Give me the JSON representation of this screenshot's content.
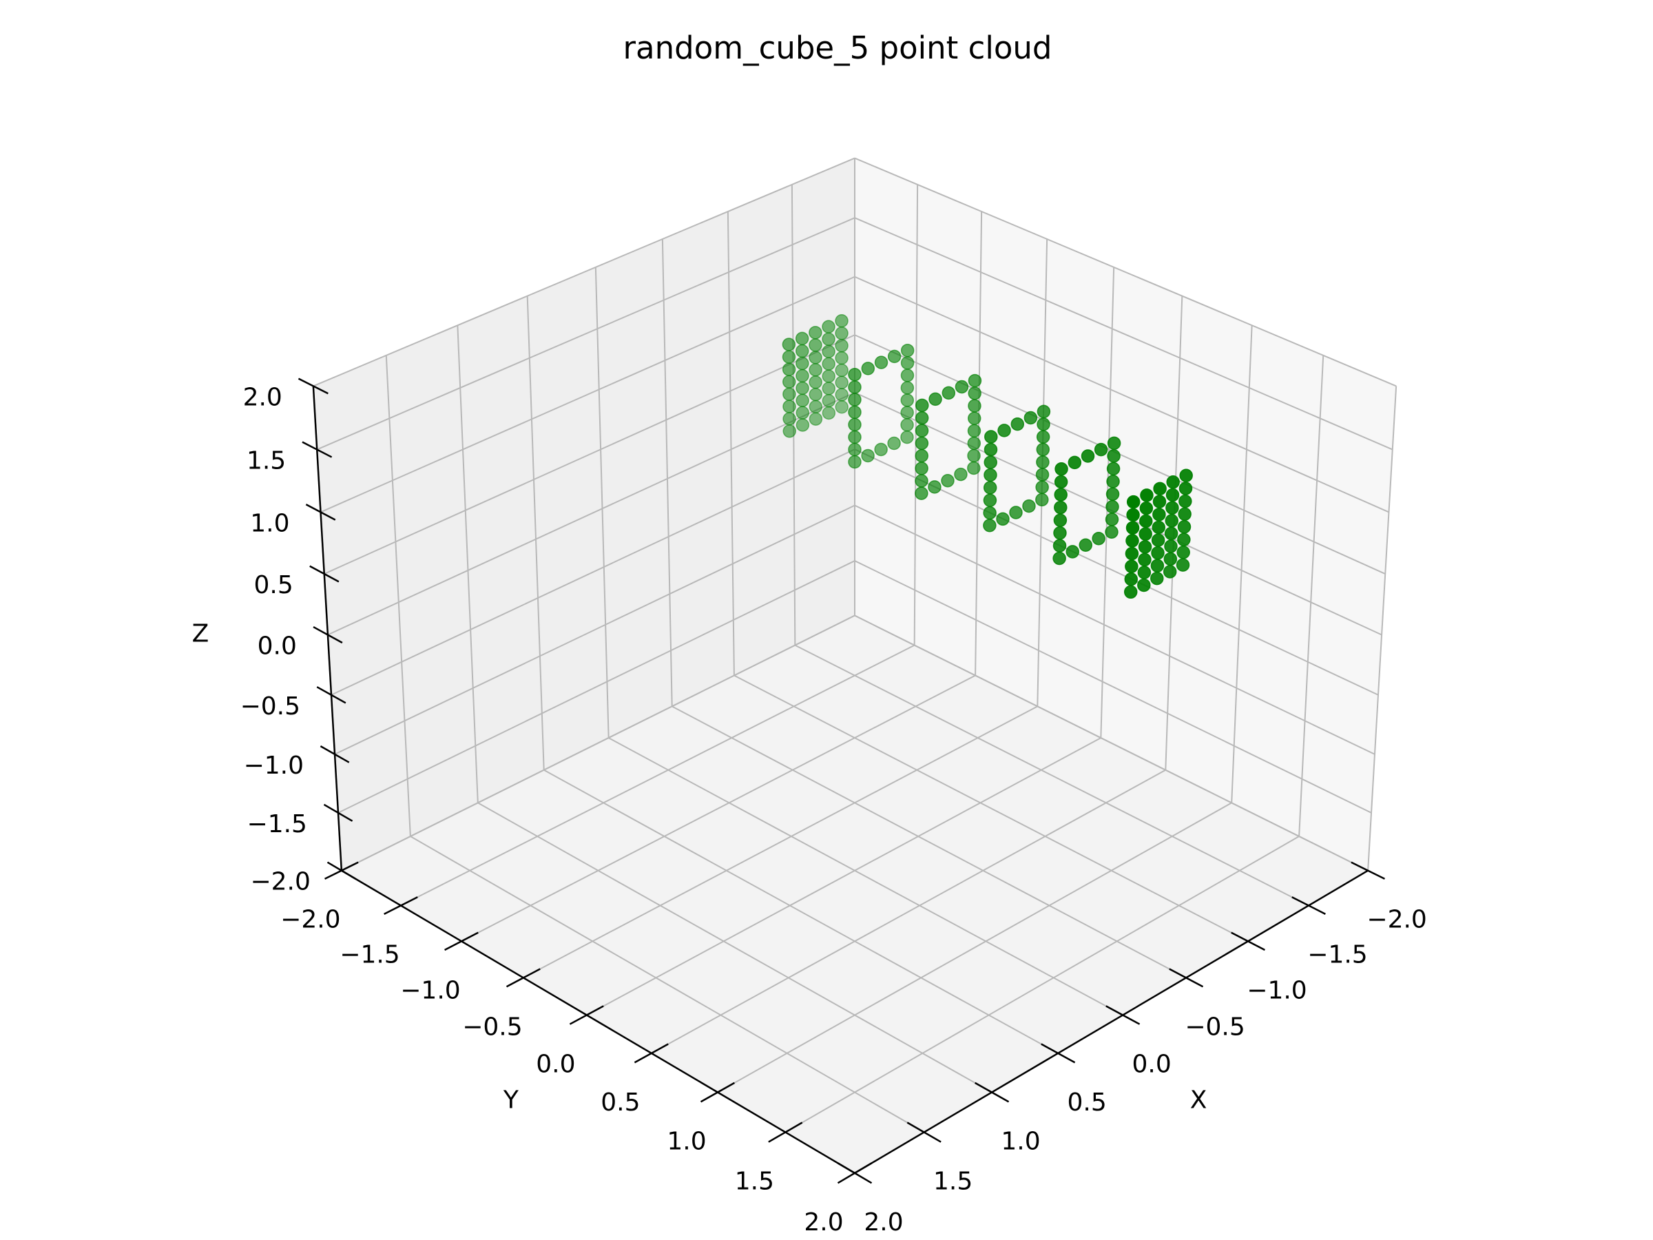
{
  "chart_data": {
    "type": "scatter3d",
    "title": "random_cube_5 point cloud",
    "xlabel": "X",
    "ylabel": "Y",
    "zlabel": "Z",
    "color": "green",
    "grid": true,
    "xlim": [
      -2,
      2
    ],
    "ylim": [
      -2,
      2
    ],
    "zlim": [
      -2,
      2
    ],
    "xticks": [
      {
        "value": -2,
        "label": "−2.0"
      },
      {
        "value": -1.5,
        "label": "−1.5"
      },
      {
        "value": -1,
        "label": "−1.0"
      },
      {
        "value": -0.5,
        "label": "−0.5"
      },
      {
        "value": 0,
        "label": "0.0"
      },
      {
        "value": 0.5,
        "label": "0.5"
      },
      {
        "value": 1,
        "label": "1.0"
      },
      {
        "value": 1.5,
        "label": "1.5"
      },
      {
        "value": 2,
        "label": "2.0"
      }
    ],
    "yticks": [
      {
        "value": -2,
        "label": "−2.0"
      },
      {
        "value": -1.5,
        "label": "−1.5"
      },
      {
        "value": -1,
        "label": "−1.0"
      },
      {
        "value": -0.5,
        "label": "−0.5"
      },
      {
        "value": 0,
        "label": "0.0"
      },
      {
        "value": 0.5,
        "label": "0.5"
      },
      {
        "value": 1,
        "label": "1.0"
      },
      {
        "value": 1.5,
        "label": "1.5"
      },
      {
        "value": 2,
        "label": "2.0"
      }
    ],
    "zticks": [
      {
        "value": -2,
        "label": "−2.0"
      },
      {
        "value": -1.5,
        "label": "−1.5"
      },
      {
        "value": -1,
        "label": "−1.0"
      },
      {
        "value": -0.5,
        "label": "−0.5"
      },
      {
        "value": 0,
        "label": "0.0"
      },
      {
        "value": 0.5,
        "label": "0.5"
      },
      {
        "value": 1,
        "label": "1.0"
      },
      {
        "value": 1.5,
        "label": "1.5"
      },
      {
        "value": 2,
        "label": "2.0"
      }
    ],
    "x": [
      -0.7,
      -0.7,
      -0.7,
      -0.7,
      -0.7,
      -0.7,
      -0.7,
      -0.7,
      -0.6,
      -0.6,
      -0.6,
      -0.6,
      -0.6,
      -0.6,
      -0.6,
      -0.6,
      -0.5,
      -0.5,
      -0.5,
      -0.5,
      -0.5,
      -0.5,
      -0.5,
      -0.5,
      -0.4,
      -0.4,
      -0.4,
      -0.4,
      -0.4,
      -0.4,
      -0.4,
      -0.4,
      -0.3,
      -0.3,
      -0.3,
      -0.3,
      -0.3,
      -0.3,
      -0.3,
      -0.3,
      -0.7,
      -0.7,
      -0.7,
      -0.7,
      -0.7,
      -0.7,
      -0.7,
      -0.7,
      -0.6,
      -0.6,
      -0.5,
      -0.5,
      -0.4,
      -0.4,
      -0.3,
      -0.3,
      -0.3,
      -0.3,
      -0.3,
      -0.3,
      -0.3,
      -0.3,
      -0.7,
      -0.7,
      -0.7,
      -0.7,
      -0.7,
      -0.7,
      -0.7,
      -0.7,
      -0.6,
      -0.6,
      -0.5,
      -0.5,
      -0.4,
      -0.4,
      -0.3,
      -0.3,
      -0.3,
      -0.3,
      -0.3,
      -0.3,
      -0.3,
      -0.3,
      -0.7,
      -0.7,
      -0.7,
      -0.7,
      -0.7,
      -0.7,
      -0.7,
      -0.7,
      -0.6,
      -0.6,
      -0.5,
      -0.5,
      -0.4,
      -0.4,
      -0.3,
      -0.3,
      -0.3,
      -0.3,
      -0.3,
      -0.3,
      -0.3,
      -0.3,
      -0.7,
      -0.7,
      -0.7,
      -0.7,
      -0.7,
      -0.7,
      -0.7,
      -0.7,
      -0.6,
      -0.6,
      -0.5,
      -0.5,
      -0.4,
      -0.4,
      -0.3,
      -0.3,
      -0.3,
      -0.3,
      -0.3,
      -0.3,
      -0.3,
      -0.3,
      -0.7,
      -0.7,
      -0.7,
      -0.7,
      -0.7,
      -0.7,
      -0.7,
      -0.7,
      -0.6,
      -0.6,
      -0.6,
      -0.6,
      -0.6,
      -0.6,
      -0.6,
      -0.6,
      -0.5,
      -0.5,
      -0.5,
      -0.5,
      -0.5,
      -0.5,
      -0.5,
      -0.5,
      -0.4,
      -0.4,
      -0.4,
      -0.4,
      -0.4,
      -0.4,
      -0.4,
      -0.4,
      -0.3,
      -0.3,
      -0.3,
      -0.3,
      -0.3,
      -0.3,
      -0.3,
      -0.3
    ],
    "y": [
      -0.8,
      -0.8,
      -0.8,
      -0.8,
      -0.8,
      -0.8,
      -0.8,
      -0.8,
      -0.8,
      -0.8,
      -0.8,
      -0.8,
      -0.8,
      -0.8,
      -0.8,
      -0.8,
      -0.8,
      -0.8,
      -0.8,
      -0.8,
      -0.8,
      -0.8,
      -0.8,
      -0.8,
      -0.8,
      -0.8,
      -0.8,
      -0.8,
      -0.8,
      -0.8,
      -0.8,
      -0.8,
      -0.8,
      -0.8,
      -0.8,
      -0.8,
      -0.8,
      -0.8,
      -0.8,
      -0.8,
      -0.3,
      -0.3,
      -0.3,
      -0.3,
      -0.3,
      -0.3,
      -0.3,
      -0.3,
      -0.3,
      -0.3,
      -0.3,
      -0.3,
      -0.3,
      -0.3,
      -0.3,
      -0.3,
      -0.3,
      -0.3,
      -0.3,
      -0.3,
      -0.3,
      -0.3,
      0.2,
      0.2,
      0.2,
      0.2,
      0.2,
      0.2,
      0.2,
      0.2,
      0.2,
      0.2,
      0.2,
      0.2,
      0.2,
      0.2,
      0.2,
      0.2,
      0.2,
      0.2,
      0.2,
      0.2,
      0.2,
      0.2,
      0.7,
      0.7,
      0.7,
      0.7,
      0.7,
      0.7,
      0.7,
      0.7,
      0.7,
      0.7,
      0.7,
      0.7,
      0.7,
      0.7,
      0.7,
      0.7,
      0.7,
      0.7,
      0.7,
      0.7,
      0.7,
      0.7,
      1.2,
      1.2,
      1.2,
      1.2,
      1.2,
      1.2,
      1.2,
      1.2,
      1.2,
      1.2,
      1.2,
      1.2,
      1.2,
      1.2,
      1.2,
      1.2,
      1.2,
      1.2,
      1.2,
      1.2,
      1.2,
      1.2,
      1.7,
      1.7,
      1.7,
      1.7,
      1.7,
      1.7,
      1.7,
      1.7,
      1.7,
      1.7,
      1.7,
      1.7,
      1.7,
      1.7,
      1.7,
      1.7,
      1.7,
      1.7,
      1.7,
      1.7,
      1.7,
      1.7,
      1.7,
      1.7,
      1.7,
      1.7,
      1.7,
      1.7,
      1.7,
      1.7,
      1.7,
      1.7,
      1.7,
      1.7,
      1.7,
      1.7,
      1.7,
      1.7,
      1.7,
      1.7
    ],
    "z": [
      1.1,
      1.2,
      1.3,
      1.4,
      1.5,
      1.6,
      1.7,
      1.8,
      1.1,
      1.2,
      1.3,
      1.4,
      1.5,
      1.6,
      1.7,
      1.8,
      1.1,
      1.2,
      1.3,
      1.4,
      1.5,
      1.6,
      1.7,
      1.8,
      1.1,
      1.2,
      1.3,
      1.4,
      1.5,
      1.6,
      1.7,
      1.8,
      1.1,
      1.2,
      1.3,
      1.4,
      1.5,
      1.6,
      1.7,
      1.8,
      1.1,
      1.2,
      1.3,
      1.4,
      1.5,
      1.6,
      1.7,
      1.8,
      1.1,
      1.8,
      1.1,
      1.8,
      1.1,
      1.8,
      1.1,
      1.2,
      1.3,
      1.4,
      1.5,
      1.6,
      1.7,
      1.8,
      1.1,
      1.2,
      1.3,
      1.4,
      1.5,
      1.6,
      1.7,
      1.8,
      1.1,
      1.8,
      1.1,
      1.8,
      1.1,
      1.8,
      1.1,
      1.2,
      1.3,
      1.4,
      1.5,
      1.6,
      1.7,
      1.8,
      1.1,
      1.2,
      1.3,
      1.4,
      1.5,
      1.6,
      1.7,
      1.8,
      1.1,
      1.8,
      1.1,
      1.8,
      1.1,
      1.8,
      1.1,
      1.2,
      1.3,
      1.4,
      1.5,
      1.6,
      1.7,
      1.8,
      1.1,
      1.2,
      1.3,
      1.4,
      1.5,
      1.6,
      1.7,
      1.8,
      1.1,
      1.8,
      1.1,
      1.8,
      1.1,
      1.8,
      1.1,
      1.2,
      1.3,
      1.4,
      1.5,
      1.6,
      1.7,
      1.8,
      1.1,
      1.2,
      1.3,
      1.4,
      1.5,
      1.6,
      1.7,
      1.8,
      1.1,
      1.2,
      1.3,
      1.4,
      1.5,
      1.6,
      1.7,
      1.8,
      1.1,
      1.2,
      1.3,
      1.4,
      1.5,
      1.6,
      1.7,
      1.8,
      1.1,
      1.2,
      1.3,
      1.4,
      1.5,
      1.6,
      1.7,
      1.8,
      1.1,
      1.2,
      1.3,
      1.4,
      1.5,
      1.6,
      1.7,
      1.8
    ]
  }
}
